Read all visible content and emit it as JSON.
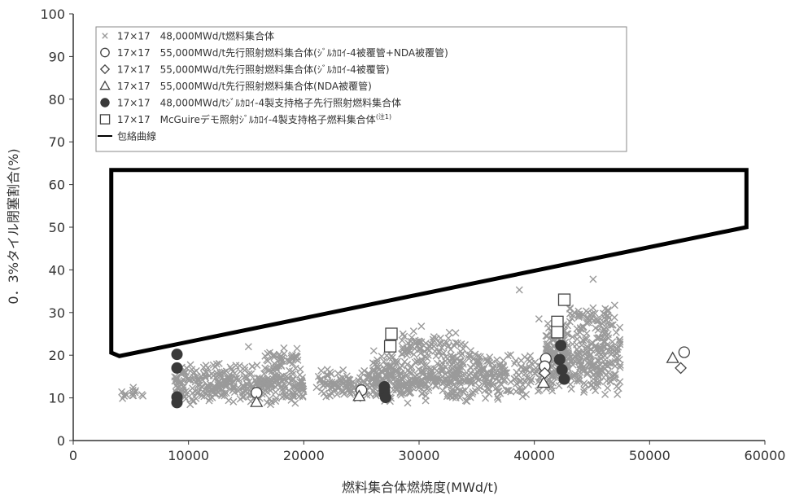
{
  "chart_data": {
    "type": "scatter",
    "xlabel": "燃料集合体燃焼度(MWd/t)",
    "ylabel": "0．3%タイル閉塞割合(%)",
    "xlim": [
      0,
      60000
    ],
    "ylim": [
      0,
      100
    ],
    "xticks": [
      0,
      10000,
      20000,
      30000,
      40000,
      50000,
      60000
    ],
    "yticks": [
      0,
      10,
      20,
      30,
      40,
      50,
      60,
      70,
      80,
      90,
      100
    ],
    "grid": false,
    "legend_position": "top-left",
    "colors": {
      "cross": "#9a9a9a",
      "filled": "#3a3a3a",
      "axis": "#333333",
      "envelope": "#000000"
    },
    "legend": [
      {
        "marker": "cross",
        "label": "17×17　48,000MWd/t燃料集合体"
      },
      {
        "marker": "open-circle",
        "label": "17×17　55,000MWd/t先行照射燃料集合体(ｼﾞﾙｶﾛｲ-4被覆管+NDA被覆管)"
      },
      {
        "marker": "open-diamond",
        "label": "17×17　55,000MWd/t先行照射燃料集合体(ｼﾞﾙｶﾛｲ-4被覆管)"
      },
      {
        "marker": "open-triangle",
        "label": "17×17　55,000MWd/t先行照射燃料集合体(NDA被覆管)"
      },
      {
        "marker": "filled-circle",
        "label": "17×17　48,000MWd/tｼﾞﾙｶﾛｲ-4製支持格子先行照射燃料集合体"
      },
      {
        "marker": "open-square",
        "label": "17×17　McGuireデモ照射ｼﾞﾙｶﾛｲ-4製支持格子燃料集合体",
        "sup": "(注1)"
      },
      {
        "marker": "line",
        "label": "包絡曲線"
      }
    ],
    "series": [
      {
        "marker": "open-circle",
        "points": [
          [
            15900,
            11.2
          ],
          [
            25000,
            11.8
          ],
          [
            41000,
            19.2
          ],
          [
            40900,
            17.4
          ],
          [
            53000,
            20.7
          ]
        ]
      },
      {
        "marker": "open-diamond",
        "points": [
          [
            52700,
            17.0
          ],
          [
            40900,
            15.8
          ]
        ]
      },
      {
        "marker": "open-triangle",
        "points": [
          [
            15900,
            9.0
          ],
          [
            24800,
            10.4
          ],
          [
            40800,
            13.5
          ],
          [
            52000,
            19.3
          ]
        ]
      },
      {
        "marker": "filled-circle",
        "points": [
          [
            9000,
            20.2
          ],
          [
            9000,
            17.0
          ],
          [
            9000,
            10.2
          ],
          [
            9000,
            8.9
          ],
          [
            27000,
            12.6
          ],
          [
            27000,
            11.7
          ],
          [
            27000,
            10.9
          ],
          [
            27100,
            10.1
          ],
          [
            42300,
            22.3
          ],
          [
            42200,
            19.0
          ],
          [
            42400,
            16.6
          ],
          [
            42600,
            14.4
          ]
        ]
      },
      {
        "marker": "open-square",
        "points": [
          [
            27600,
            25.0
          ],
          [
            27500,
            22.1
          ],
          [
            42600,
            33.0
          ],
          [
            42000,
            27.8
          ],
          [
            42000,
            25.4
          ]
        ]
      },
      {
        "marker": "cross",
        "clusters": [
          {
            "x": [
              4000,
              6200
            ],
            "y": [
              9.5,
              12.5
            ],
            "n": 14
          },
          {
            "x": [
              8800,
              20000
            ],
            "y": [
              8.0,
              18.5
            ],
            "n": 360
          },
          {
            "x": [
              16500,
              19500
            ],
            "y": [
              16.0,
              22.0
            ],
            "n": 40
          },
          {
            "x": [
              21000,
              26500
            ],
            "y": [
              9.5,
              17.0
            ],
            "n": 110
          },
          {
            "x": [
              26000,
              37000
            ],
            "y": [
              8.0,
              22.0
            ],
            "n": 420
          },
          {
            "x": [
              28500,
              34000
            ],
            "y": [
              19.0,
              26.0
            ],
            "n": 70
          },
          {
            "x": [
              37000,
              41500
            ],
            "y": [
              10.0,
              21.5
            ],
            "n": 90
          },
          {
            "x": [
              41000,
              47500
            ],
            "y": [
              10.5,
              28.0
            ],
            "n": 330
          },
          {
            "x": [
              43000,
              47000
            ],
            "y": [
              26.0,
              32.0
            ],
            "n": 50
          }
        ],
        "outliers": [
          [
            38700,
            35.3
          ],
          [
            45100,
            37.8
          ],
          [
            40400,
            28.5
          ],
          [
            15200,
            22.0
          ],
          [
            47200,
            10.8
          ],
          [
            30200,
            26.8
          ]
        ]
      },
      {
        "marker": "line",
        "name": "包絡曲線",
        "points": [
          [
            4000,
            19.8
          ],
          [
            58400,
            50.0
          ],
          [
            58400,
            63.4
          ],
          [
            3300,
            63.4
          ],
          [
            3300,
            20.6
          ],
          [
            4000,
            19.8
          ]
        ]
      }
    ]
  }
}
